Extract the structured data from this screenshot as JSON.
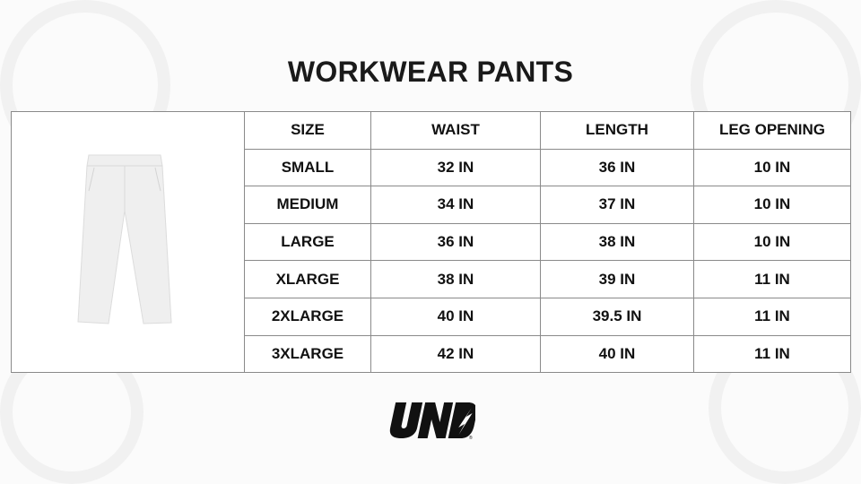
{
  "title": "WORKWEAR PANTS",
  "table": {
    "headers": [
      "SIZE",
      "WAIST",
      "LENGTH",
      "LEG OPENING"
    ],
    "rows": [
      [
        "SMALL",
        "32 IN",
        "36 IN",
        "10 IN"
      ],
      [
        "MEDIUM",
        "34 IN",
        "37 IN",
        "10 IN"
      ],
      [
        "LARGE",
        "36 IN",
        "38 IN",
        "10 IN"
      ],
      [
        "XLARGE",
        "38 IN",
        "39 IN",
        "11 IN"
      ],
      [
        "2XLARGE",
        "40 IN",
        "39.5 IN",
        "11 IN"
      ],
      [
        "3XLARGE",
        "42 IN",
        "40 IN",
        "11 IN"
      ]
    ]
  },
  "product_image": "white-wide-leg-pants",
  "logo": {
    "text": "UND"
  }
}
